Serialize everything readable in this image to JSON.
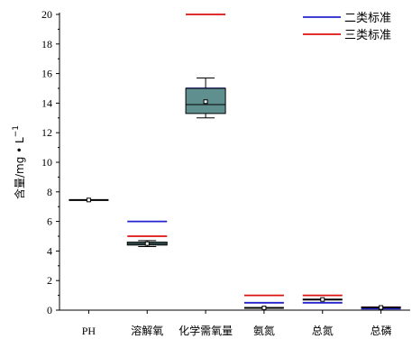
{
  "chart_data": {
    "type": "box",
    "categories": [
      "PH",
      "溶解氧",
      "化学需氧量",
      "氨氮",
      "总氮",
      "总磷"
    ],
    "ylabel": "含量/mg • L",
    "ylabel_sup": "−1",
    "ylim": [
      0,
      20
    ],
    "yticks": [
      0,
      2,
      4,
      6,
      8,
      10,
      12,
      14,
      16,
      18,
      20
    ],
    "grid": false,
    "legend_position": "top-right",
    "boxes": [
      {
        "category": "PH",
        "min": 7.45,
        "q1": 7.45,
        "median": 7.45,
        "q3": 7.45,
        "max": 7.45,
        "mean": 7.45
      },
      {
        "category": "溶解氧",
        "min": 4.3,
        "q1": 4.4,
        "median": 4.5,
        "q3": 4.6,
        "max": 4.7,
        "mean": 4.5
      },
      {
        "category": "化学需氧量",
        "min": 13.0,
        "q1": 13.3,
        "median": 13.9,
        "q3": 15.0,
        "max": 15.7,
        "mean": 14.1
      },
      {
        "category": "氨氮",
        "min": 0.1,
        "q1": 0.1,
        "median": 0.15,
        "q3": 0.2,
        "max": 0.2,
        "mean": 0.15
      },
      {
        "category": "总氮",
        "min": 0.65,
        "q1": 0.7,
        "median": 0.72,
        "q3": 0.75,
        "max": 0.8,
        "mean": 0.72
      },
      {
        "category": "总磷",
        "min": 0.15,
        "q1": 0.17,
        "median": 0.18,
        "q3": 0.19,
        "max": 0.2,
        "mean": 0.18
      }
    ],
    "standards": [
      {
        "name": "二类标准",
        "color": "#2222cc",
        "values": [
          null,
          6,
          15,
          0.5,
          0.5,
          0.1
        ]
      },
      {
        "name": "三类标准",
        "color": "#dd1111",
        "values": [
          null,
          5,
          20,
          1.0,
          1.0,
          0.2
        ]
      }
    ],
    "box_fill": "#5f8f8f"
  }
}
